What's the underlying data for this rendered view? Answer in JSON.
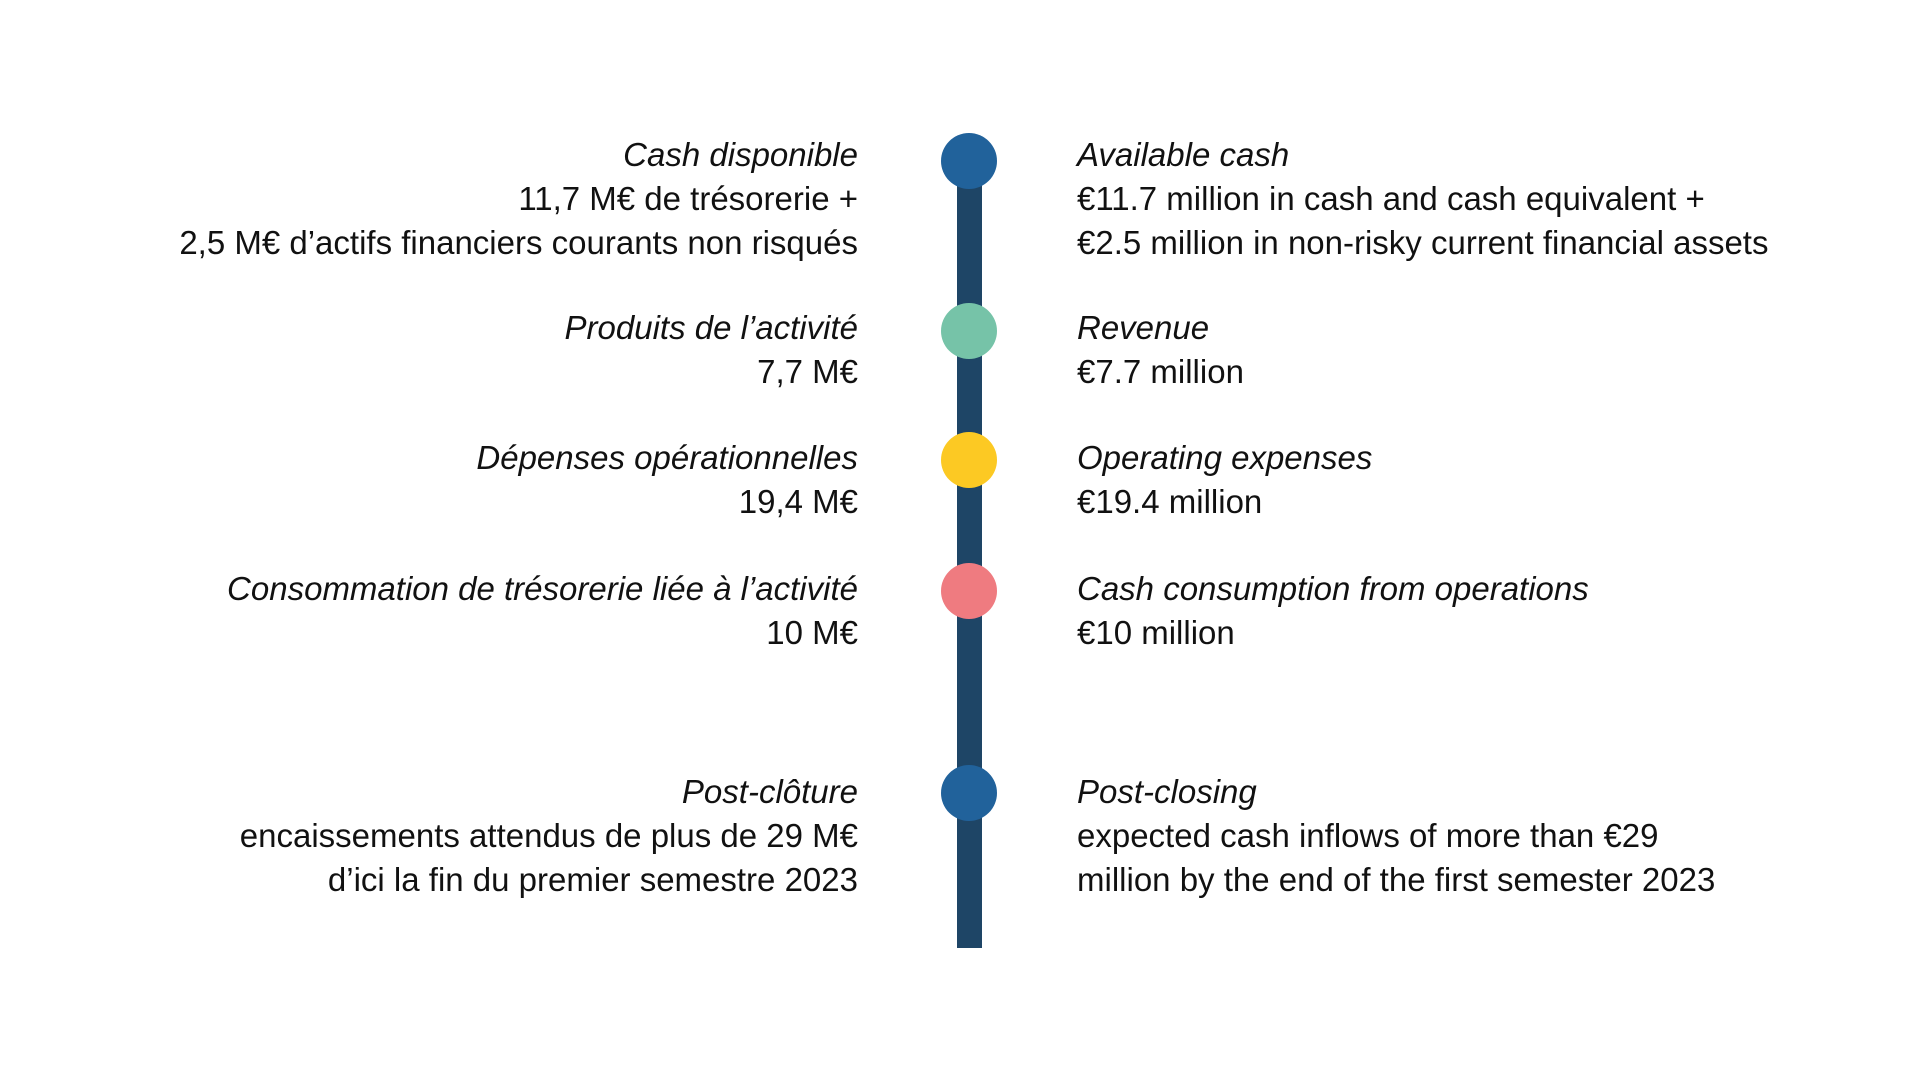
{
  "colors": {
    "line": "#1e4566",
    "dot_blue": "#21629b",
    "dot_green": "#76c3a8",
    "dot_yellow": "#fcc923",
    "dot_pink": "#ef7b80"
  },
  "items": [
    {
      "dot_color": "#21629b",
      "fr_title": "Cash disponible",
      "fr_lines": [
        "11,7 M€ de trésorerie +",
        "2,5 M€ d’actifs financiers courants non risqués"
      ],
      "en_title": "Available cash",
      "en_lines": [
        "€11.7 million in cash and cash equivalent +",
        "€2.5 million in non-risky current financial assets"
      ]
    },
    {
      "dot_color": "#76c3a8",
      "fr_title": "Produits de l’activité",
      "fr_lines": [
        "7,7 M€"
      ],
      "en_title": "Revenue",
      "en_lines": [
        "€7.7 million"
      ]
    },
    {
      "dot_color": "#fcc923",
      "fr_title": "Dépenses opérationnelles",
      "fr_lines": [
        "19,4 M€"
      ],
      "en_title": "Operating expenses",
      "en_lines": [
        "€19.4 million"
      ]
    },
    {
      "dot_color": "#ef7b80",
      "fr_title": "Consommation de trésorerie liée à l’activité",
      "fr_lines": [
        "10 M€"
      ],
      "en_title": "Cash consumption from operations",
      "en_lines": [
        "€10 million"
      ]
    },
    {
      "dot_color": "#21629b",
      "fr_title": "Post-clôture",
      "fr_lines": [
        "encaissements attendus de plus de 29 M€",
        "d’ici la fin du premier semestre 2023"
      ],
      "en_title": "Post-closing",
      "en_lines": [
        "expected cash inflows of more than €29",
        "million by the end of the first semester 2023"
      ]
    }
  ]
}
